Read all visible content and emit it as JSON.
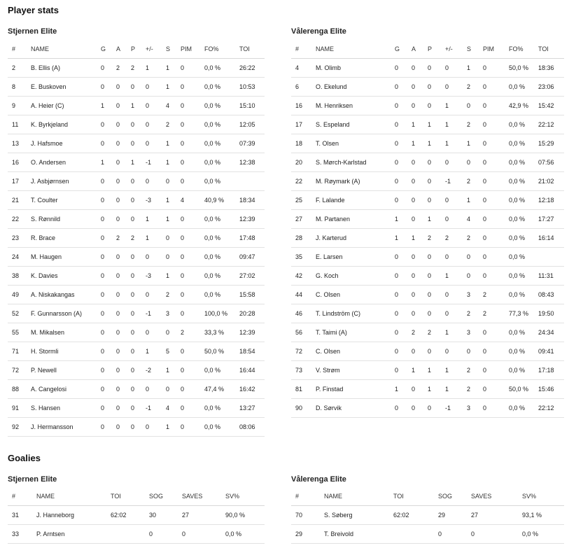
{
  "player_stats_title": "Player stats",
  "goalies_title": "Goalies",
  "player_columns": [
    "#",
    "NAME",
    "G",
    "A",
    "P",
    "+/-",
    "S",
    "PIM",
    "FO%",
    "TOI"
  ],
  "goalie_columns": [
    "#",
    "NAME",
    "TOI",
    "SOG",
    "SAVES",
    "SV%"
  ],
  "teams": [
    {
      "name": "Stjernen Elite",
      "players": [
        [
          "2",
          "B. Ellis (A)",
          "0",
          "2",
          "2",
          "1",
          "1",
          "0",
          "0,0 %",
          "26:22"
        ],
        [
          "8",
          "E. Buskoven",
          "0",
          "0",
          "0",
          "0",
          "1",
          "0",
          "0,0 %",
          "10:53"
        ],
        [
          "9",
          "A. Heier (C)",
          "1",
          "0",
          "1",
          "0",
          "4",
          "0",
          "0,0 %",
          "15:10"
        ],
        [
          "11",
          "K. Byrkjeland",
          "0",
          "0",
          "0",
          "0",
          "2",
          "0",
          "0,0 %",
          "12:05"
        ],
        [
          "13",
          "J. Hafsmoe",
          "0",
          "0",
          "0",
          "0",
          "1",
          "0",
          "0,0 %",
          "07:39"
        ],
        [
          "16",
          "O. Andersen",
          "1",
          "0",
          "1",
          "-1",
          "1",
          "0",
          "0,0 %",
          "12:38"
        ],
        [
          "17",
          "J. Asbjørnsen",
          "0",
          "0",
          "0",
          "0",
          "0",
          "0",
          "0,0 %",
          ""
        ],
        [
          "21",
          "T. Coulter",
          "0",
          "0",
          "0",
          "-3",
          "1",
          "4",
          "40,9 %",
          "18:34"
        ],
        [
          "22",
          "S. Rønnild",
          "0",
          "0",
          "0",
          "1",
          "1",
          "0",
          "0,0 %",
          "12:39"
        ],
        [
          "23",
          "R. Brace",
          "0",
          "2",
          "2",
          "1",
          "0",
          "0",
          "0,0 %",
          "17:48"
        ],
        [
          "24",
          "M. Haugen",
          "0",
          "0",
          "0",
          "0",
          "0",
          "0",
          "0,0 %",
          "09:47"
        ],
        [
          "38",
          "K. Davies",
          "0",
          "0",
          "0",
          "-3",
          "1",
          "0",
          "0,0 %",
          "27:02"
        ],
        [
          "49",
          "A. Niskakangas",
          "0",
          "0",
          "0",
          "0",
          "2",
          "0",
          "0,0 %",
          "15:58"
        ],
        [
          "52",
          "F. Gunnarsson (A)",
          "0",
          "0",
          "0",
          "-1",
          "3",
          "0",
          "100,0 %",
          "20:28"
        ],
        [
          "55",
          "M. Mikalsen",
          "0",
          "0",
          "0",
          "0",
          "0",
          "2",
          "33,3 %",
          "12:39"
        ],
        [
          "71",
          "H. Stormli",
          "0",
          "0",
          "0",
          "1",
          "5",
          "0",
          "50,0 %",
          "18:54"
        ],
        [
          "72",
          "P. Newell",
          "0",
          "0",
          "0",
          "-2",
          "1",
          "0",
          "0,0 %",
          "16:44"
        ],
        [
          "88",
          "A. Cangelosi",
          "0",
          "0",
          "0",
          "0",
          "0",
          "0",
          "47,4 %",
          "16:42"
        ],
        [
          "91",
          "S. Hansen",
          "0",
          "0",
          "0",
          "-1",
          "4",
          "0",
          "0,0 %",
          "13:27"
        ],
        [
          "92",
          "J. Hermansson",
          "0",
          "0",
          "0",
          "0",
          "1",
          "0",
          "0,0 %",
          "08:06"
        ]
      ],
      "goalies": [
        [
          "31",
          "J. Hanneborg",
          "62:02",
          "30",
          "27",
          "90,0 %"
        ],
        [
          "33",
          "P. Arntsen",
          "",
          "0",
          "0",
          "0,0 %"
        ]
      ]
    },
    {
      "name": "Vålerenga Elite",
      "players": [
        [
          "4",
          "M. Olimb",
          "0",
          "0",
          "0",
          "0",
          "1",
          "0",
          "50,0 %",
          "18:36"
        ],
        [
          "6",
          "O. Ekelund",
          "0",
          "0",
          "0",
          "0",
          "2",
          "0",
          "0,0 %",
          "23:06"
        ],
        [
          "16",
          "M. Henriksen",
          "0",
          "0",
          "0",
          "1",
          "0",
          "0",
          "42,9 %",
          "15:42"
        ],
        [
          "17",
          "S. Espeland",
          "0",
          "1",
          "1",
          "1",
          "2",
          "0",
          "0,0 %",
          "22:12"
        ],
        [
          "18",
          "T. Olsen",
          "0",
          "1",
          "1",
          "1",
          "1",
          "0",
          "0,0 %",
          "15:29"
        ],
        [
          "20",
          "S. Mørch-Karlstad",
          "0",
          "0",
          "0",
          "0",
          "0",
          "0",
          "0,0 %",
          "07:56"
        ],
        [
          "22",
          "M. Røymark (A)",
          "0",
          "0",
          "0",
          "-1",
          "2",
          "0",
          "0,0 %",
          "21:02"
        ],
        [
          "25",
          "F. Lalande",
          "0",
          "0",
          "0",
          "0",
          "1",
          "0",
          "0,0 %",
          "12:18"
        ],
        [
          "27",
          "M. Partanen",
          "1",
          "0",
          "1",
          "0",
          "4",
          "0",
          "0,0 %",
          "17:27"
        ],
        [
          "28",
          "J. Karterud",
          "1",
          "1",
          "2",
          "2",
          "2",
          "0",
          "0,0 %",
          "16:14"
        ],
        [
          "35",
          "E. Larsen",
          "0",
          "0",
          "0",
          "0",
          "0",
          "0",
          "0,0 %",
          ""
        ],
        [
          "42",
          "G. Koch",
          "0",
          "0",
          "0",
          "1",
          "0",
          "0",
          "0,0 %",
          "11:31"
        ],
        [
          "44",
          "C. Olsen",
          "0",
          "0",
          "0",
          "0",
          "3",
          "2",
          "0,0 %",
          "08:43"
        ],
        [
          "46",
          "T. Lindström (C)",
          "0",
          "0",
          "0",
          "0",
          "2",
          "2",
          "77,3 %",
          "19:50"
        ],
        [
          "56",
          "T. Taimi (A)",
          "0",
          "2",
          "2",
          "1",
          "3",
          "0",
          "0,0 %",
          "24:34"
        ],
        [
          "72",
          "C. Olsen",
          "0",
          "0",
          "0",
          "0",
          "0",
          "0",
          "0,0 %",
          "09:41"
        ],
        [
          "73",
          "V. Strøm",
          "0",
          "1",
          "1",
          "1",
          "2",
          "0",
          "0,0 %",
          "17:18"
        ],
        [
          "81",
          "P. Finstad",
          "1",
          "0",
          "1",
          "1",
          "2",
          "0",
          "50,0 %",
          "15:46"
        ],
        [
          "90",
          "D. Sørvik",
          "0",
          "0",
          "0",
          "-1",
          "3",
          "0",
          "0,0 %",
          "22:12"
        ]
      ],
      "goalies": [
        [
          "70",
          "S. Søberg",
          "62:02",
          "29",
          "27",
          "93,1 %"
        ],
        [
          "29",
          "T. Breivold",
          "",
          "0",
          "0",
          "0,0 %"
        ]
      ]
    }
  ]
}
